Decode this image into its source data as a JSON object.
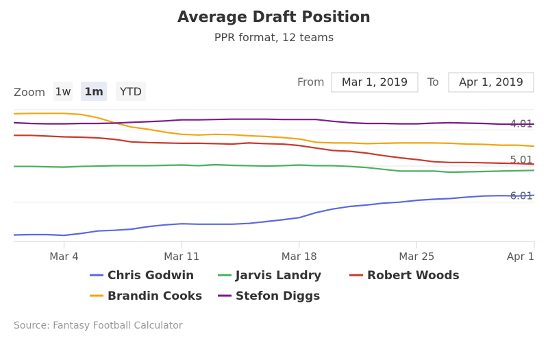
{
  "chart_data": {
    "type": "line",
    "title": "Average Draft Position",
    "subtitle": "PPR format, 12 teams",
    "source": "Source: Fantasy Football Calculator",
    "zoom": {
      "label": "Zoom",
      "buttons": [
        "1w",
        "1m",
        "YTD"
      ],
      "selected": "1m"
    },
    "range": {
      "from_label": "From",
      "from_value": "Mar 1, 2019",
      "to_label": "To",
      "to_value": "Apr 1, 2019"
    },
    "x_tick_labels": [
      "Mar 4",
      "Mar 11",
      "Mar 18",
      "Mar 25",
      "Apr 1"
    ],
    "x_tick_days": [
      3,
      10,
      17,
      24,
      31
    ],
    "y_tick_labels": [
      "4.01",
      "5.01",
      "6.01"
    ],
    "y_tick_values": [
      4.01,
      5.01,
      6.01
    ],
    "ylim": [
      3.45,
      7.1
    ],
    "xlim": [
      0,
      31
    ],
    "legend_position": "bottom",
    "grid": "horizontal",
    "x": [
      0,
      1,
      2,
      3,
      4,
      5,
      6,
      7,
      8,
      9,
      10,
      11,
      12,
      13,
      14,
      15,
      16,
      17,
      18,
      19,
      20,
      21,
      22,
      23,
      24,
      25,
      26,
      27,
      28,
      29,
      30,
      31
    ],
    "series": [
      {
        "name": "Chris Godwin",
        "color": "#5b67e0",
        "values": [
          6.92,
          6.91,
          6.91,
          6.93,
          6.88,
          6.81,
          6.79,
          6.76,
          6.69,
          6.64,
          6.61,
          6.62,
          6.62,
          6.62,
          6.6,
          6.55,
          6.5,
          6.44,
          6.3,
          6.2,
          6.13,
          6.09,
          6.04,
          6.01,
          5.96,
          5.93,
          5.91,
          5.87,
          5.84,
          5.83,
          5.84,
          5.82
        ]
      },
      {
        "name": "Jarvis Landry",
        "color": "#4caf5f",
        "values": [
          5.02,
          5.02,
          5.03,
          5.04,
          5.02,
          5.01,
          5.0,
          5.0,
          5.0,
          4.99,
          4.98,
          5.0,
          4.97,
          4.99,
          5.0,
          5.01,
          5.0,
          4.98,
          5.0,
          5.0,
          5.02,
          5.05,
          5.1,
          5.15,
          5.15,
          5.15,
          5.18,
          5.17,
          5.16,
          5.15,
          5.14,
          5.13
        ]
      },
      {
        "name": "Robert Woods",
        "color": "#c9392b",
        "values": [
          4.16,
          4.16,
          4.18,
          4.2,
          4.21,
          4.23,
          4.27,
          4.34,
          4.36,
          4.37,
          4.38,
          4.38,
          4.39,
          4.4,
          4.37,
          4.39,
          4.4,
          4.44,
          4.51,
          4.58,
          4.6,
          4.65,
          4.72,
          4.78,
          4.83,
          4.89,
          4.91,
          4.91,
          4.92,
          4.93,
          4.94,
          4.96
        ]
      },
      {
        "name": "Brandin Cooks",
        "color": "#f4a40e",
        "values": [
          3.56,
          3.55,
          3.55,
          3.55,
          3.58,
          3.67,
          3.81,
          3.93,
          3.99,
          4.07,
          4.13,
          4.15,
          4.13,
          4.14,
          4.17,
          4.19,
          4.22,
          4.26,
          4.35,
          4.37,
          4.37,
          4.39,
          4.38,
          4.37,
          4.37,
          4.37,
          4.38,
          4.4,
          4.41,
          4.43,
          4.43,
          4.46
        ]
      },
      {
        "name": "Stefon Diggs",
        "color": "#7b1b8a",
        "values": [
          3.81,
          3.83,
          3.84,
          3.84,
          3.83,
          3.83,
          3.82,
          3.8,
          3.78,
          3.76,
          3.73,
          3.73,
          3.72,
          3.71,
          3.71,
          3.71,
          3.72,
          3.72,
          3.72,
          3.77,
          3.81,
          3.83,
          3.83,
          3.84,
          3.84,
          3.82,
          3.81,
          3.82,
          3.83,
          3.85,
          3.85,
          3.85
        ]
      }
    ]
  }
}
